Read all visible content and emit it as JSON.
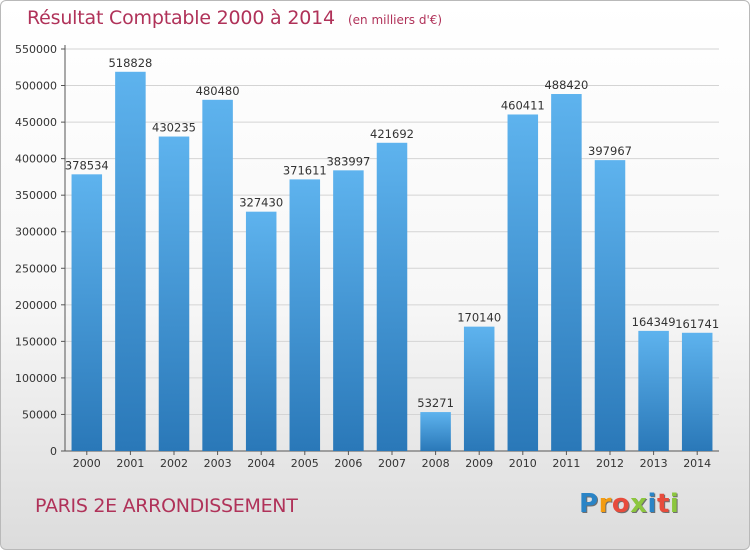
{
  "title": "Résultat Comptable 2000 à 2014",
  "subtitle": "(en milliers d'€)",
  "commune": "PARIS 2E  ARRONDISSEMENT",
  "logo": {
    "letters": [
      "P",
      "r",
      "o",
      "x",
      "i",
      "t",
      "i"
    ],
    "colors": [
      "#2a84c6",
      "#f39c12",
      "#e74c3c",
      "#8cc63e",
      "#2a84c6",
      "#e74c3c",
      "#8cc63e"
    ]
  },
  "colors": {
    "bar_top": "#5eb3ee",
    "bar_bottom": "#2a78b8",
    "title": "#b03259"
  },
  "chart_data": {
    "type": "bar",
    "categories": [
      "2000",
      "2001",
      "2002",
      "2003",
      "2004",
      "2005",
      "2006",
      "2007",
      "2008",
      "2009",
      "2010",
      "2011",
      "2012",
      "2013",
      "2014"
    ],
    "values": [
      378534,
      518828,
      430235,
      480480,
      327430,
      371611,
      383997,
      421692,
      53271,
      170140,
      460411,
      488420,
      397967,
      164349,
      161741
    ],
    "ylim": [
      0,
      550000
    ],
    "yticks": [
      "0",
      "50000",
      "100000",
      "150000",
      "200000",
      "250000",
      "300000",
      "350000",
      "400000",
      "450000",
      "500000",
      "550000"
    ],
    "grid": true
  }
}
